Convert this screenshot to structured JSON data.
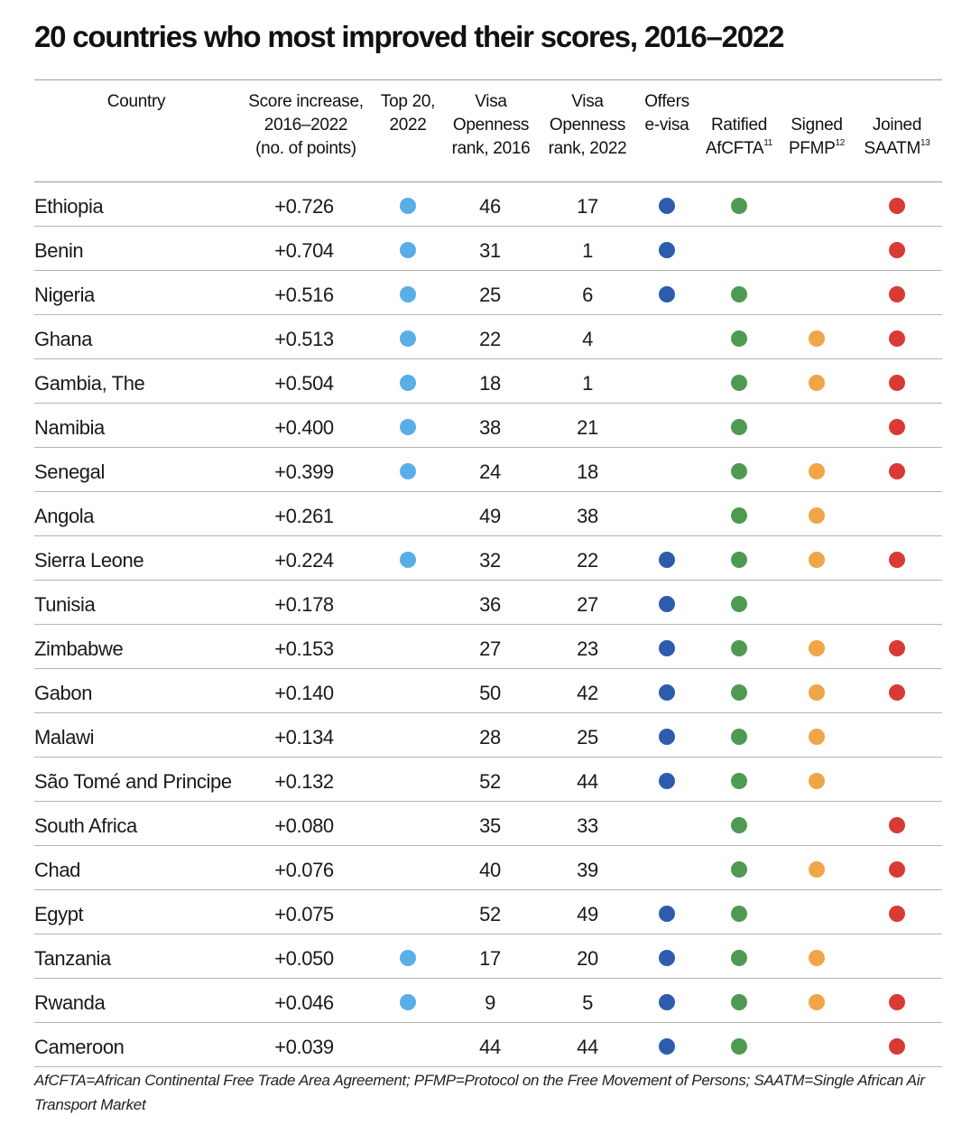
{
  "title": "20 countries who most improved their scores, 2016–2022",
  "headers": {
    "country": "Country",
    "score": "Score increase,\n2016–2022\n(no. of points)",
    "top20": "Top 20,\n2022",
    "visa2016": "Visa\nOpenness\nrank, 2016",
    "visa2022": "Visa\nOpenness\nrank, 2022",
    "evisa": "Offers\ne-visa",
    "afcfta": "Ratified\nAfCFTA",
    "afcfta_note": "11",
    "pfmp": "Signed\nPFMP",
    "pfmp_note": "12",
    "saatm": "Joined\nSAATM",
    "saatm_note": "13"
  },
  "colors": {
    "top20": "#5aaee8",
    "evisa": "#2d5cad",
    "afcfta": "#4f9a52",
    "pfmp": "#f0a548",
    "saatm": "#d93a35"
  },
  "rows": [
    {
      "country": "Ethiopia",
      "score": "+0.726",
      "v2016": "46",
      "v2022": "17",
      "top20": true,
      "evisa": true,
      "afcfta": true,
      "pfmp": false,
      "saatm": true
    },
    {
      "country": "Benin",
      "score": "+0.704",
      "v2016": "31",
      "v2022": "1",
      "top20": true,
      "evisa": true,
      "afcfta": false,
      "pfmp": false,
      "saatm": true
    },
    {
      "country": "Nigeria",
      "score": "+0.516",
      "v2016": "25",
      "v2022": "6",
      "top20": true,
      "evisa": true,
      "afcfta": true,
      "pfmp": false,
      "saatm": true
    },
    {
      "country": "Ghana",
      "score": "+0.513",
      "v2016": "22",
      "v2022": "4",
      "top20": true,
      "evisa": false,
      "afcfta": true,
      "pfmp": true,
      "saatm": true
    },
    {
      "country": "Gambia, The",
      "score": "+0.504",
      "v2016": "18",
      "v2022": "1",
      "top20": true,
      "evisa": false,
      "afcfta": true,
      "pfmp": true,
      "saatm": true
    },
    {
      "country": "Namibia",
      "score": "+0.400",
      "v2016": "38",
      "v2022": "21",
      "top20": true,
      "evisa": false,
      "afcfta": true,
      "pfmp": false,
      "saatm": true
    },
    {
      "country": "Senegal",
      "score": "+0.399",
      "v2016": "24",
      "v2022": "18",
      "top20": true,
      "evisa": false,
      "afcfta": true,
      "pfmp": true,
      "saatm": true
    },
    {
      "country": "Angola",
      "score": "+0.261",
      "v2016": "49",
      "v2022": "38",
      "top20": false,
      "evisa": false,
      "afcfta": true,
      "pfmp": true,
      "saatm": false
    },
    {
      "country": "Sierra Leone",
      "score": "+0.224",
      "v2016": "32",
      "v2022": "22",
      "top20": true,
      "evisa": true,
      "afcfta": true,
      "pfmp": true,
      "saatm": true
    },
    {
      "country": "Tunisia",
      "score": "+0.178",
      "v2016": "36",
      "v2022": "27",
      "top20": false,
      "evisa": true,
      "afcfta": true,
      "pfmp": false,
      "saatm": false
    },
    {
      "country": "Zimbabwe",
      "score": "+0.153",
      "v2016": "27",
      "v2022": "23",
      "top20": false,
      "evisa": true,
      "afcfta": true,
      "pfmp": true,
      "saatm": true
    },
    {
      "country": "Gabon",
      "score": "+0.140",
      "v2016": "50",
      "v2022": "42",
      "top20": false,
      "evisa": true,
      "afcfta": true,
      "pfmp": true,
      "saatm": true
    },
    {
      "country": "Malawi",
      "score": "+0.134",
      "v2016": "28",
      "v2022": "25",
      "top20": false,
      "evisa": true,
      "afcfta": true,
      "pfmp": true,
      "saatm": false
    },
    {
      "country": "São Tomé and Principe",
      "score": "+0.132",
      "v2016": "52",
      "v2022": "44",
      "top20": false,
      "evisa": true,
      "afcfta": true,
      "pfmp": true,
      "saatm": false
    },
    {
      "country": "South Africa",
      "score": "+0.080",
      "v2016": "35",
      "v2022": "33",
      "top20": false,
      "evisa": false,
      "afcfta": true,
      "pfmp": false,
      "saatm": true
    },
    {
      "country": "Chad",
      "score": "+0.076",
      "v2016": "40",
      "v2022": "39",
      "top20": false,
      "evisa": false,
      "afcfta": true,
      "pfmp": true,
      "saatm": true
    },
    {
      "country": "Egypt",
      "score": "+0.075",
      "v2016": "52",
      "v2022": "49",
      "top20": false,
      "evisa": true,
      "afcfta": true,
      "pfmp": false,
      "saatm": true
    },
    {
      "country": "Tanzania",
      "score": "+0.050",
      "v2016": "17",
      "v2022": "20",
      "top20": true,
      "evisa": true,
      "afcfta": true,
      "pfmp": true,
      "saatm": false
    },
    {
      "country": "Rwanda",
      "score": "+0.046",
      "v2016": "9",
      "v2022": "5",
      "top20": true,
      "evisa": true,
      "afcfta": true,
      "pfmp": true,
      "saatm": true
    },
    {
      "country": "Cameroon",
      "score": "+0.039",
      "v2016": "44",
      "v2022": "44",
      "top20": false,
      "evisa": true,
      "afcfta": true,
      "pfmp": false,
      "saatm": true
    }
  ],
  "footnote": "AfCFTA=African Continental Free Trade Area Agreement; PFMP=Protocol on the Free Movement of Persons; SAATM=Single African Air Transport Market"
}
